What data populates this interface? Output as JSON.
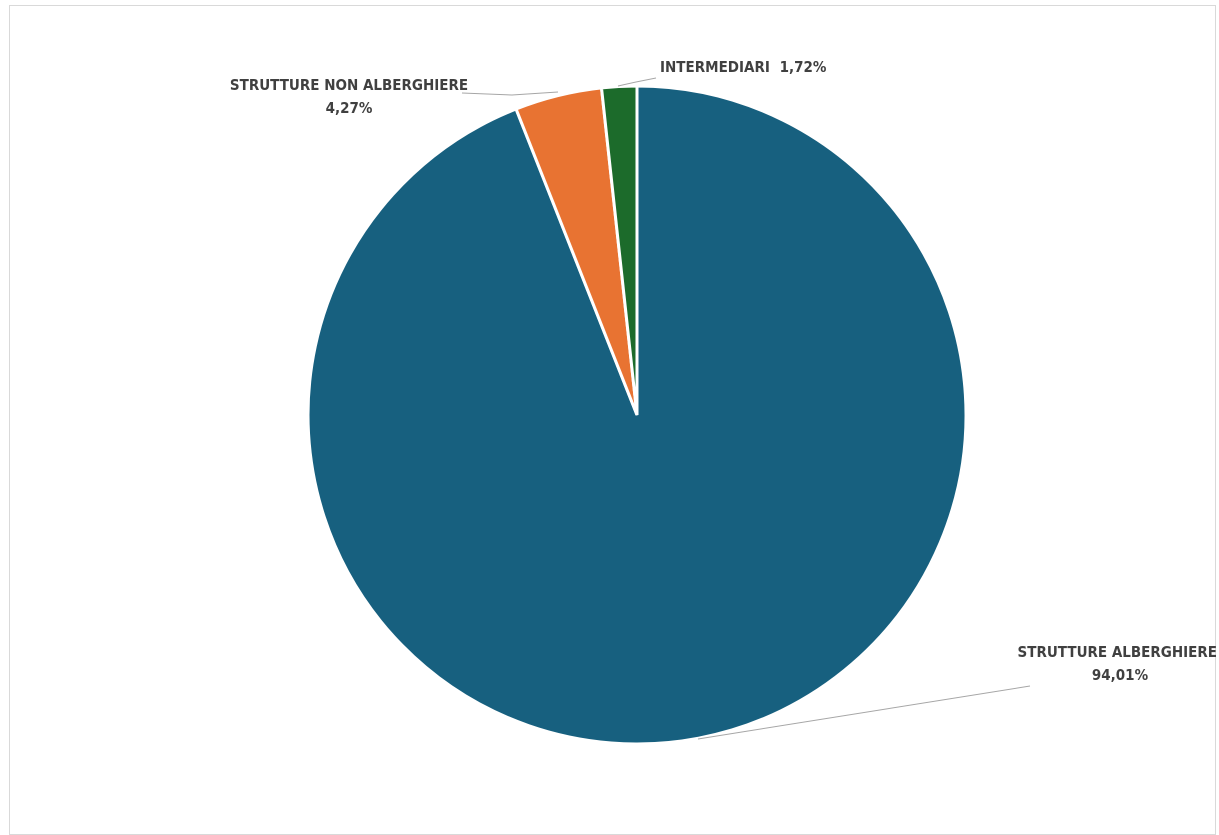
{
  "chart_data": {
    "type": "pie",
    "title": "",
    "legend": "none",
    "slices": [
      {
        "name": "STRUTTURE ALBERGHIERE",
        "pct_label": "94,01%",
        "value": 94.01,
        "color": "#17607f"
      },
      {
        "name": "STRUTTURE NON ALBERGHIERE",
        "pct_label": "4,27%",
        "value": 4.27,
        "color": "#e87332"
      },
      {
        "name": "INTERMEDIARI",
        "pct_label": "1,72%",
        "value": 1.72,
        "color": "#1c6b2b"
      }
    ]
  }
}
